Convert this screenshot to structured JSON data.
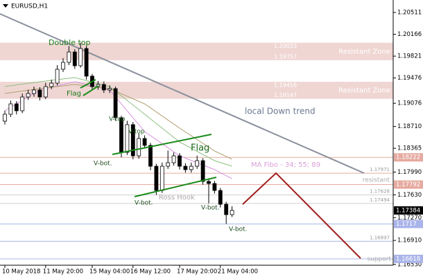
{
  "chart_data": {
    "type": "candlestick",
    "title": "EURUSD,H1",
    "categories": [
      "10 May 2018",
      null,
      null,
      null,
      null,
      null,
      null,
      "11 May 20:00",
      null,
      null,
      null,
      null,
      null,
      null,
      null,
      "15 May 04:00",
      null,
      null,
      null,
      null,
      null,
      null,
      "16 May 12:00",
      null,
      null,
      null,
      null,
      null,
      null,
      null,
      "17 May 20:00",
      null,
      null,
      null,
      null,
      null,
      null,
      "21 May 04:00",
      null,
      null
    ],
    "open": [
      1.18794,
      1.18903,
      1.19067,
      1.18958,
      1.19176,
      1.19231,
      1.19286,
      1.19176,
      1.1934,
      1.19395,
      1.19614,
      1.19723,
      1.19887,
      1.19669,
      1.19942,
      1.19505,
      1.1934,
      1.19373,
      1.19286,
      1.19308,
      1.18848,
      1.18301,
      1.18739,
      1.18246,
      1.1852,
      1.18411,
      1.18082,
      1.17699,
      1.18082,
      1.18137,
      1.18246,
      1.18082,
      1.18028,
      1.18082,
      1.1817,
      1.17842,
      1.17809,
      1.17699,
      1.17481,
      1.17317
    ],
    "high": [
      1.1896,
      1.1912,
      1.1911,
      1.1923,
      1.1929,
      1.1934,
      1.1933,
      1.194,
      1.1945,
      1.1968,
      1.1979,
      1.1998,
      1.1993,
      1.20033,
      1.1998,
      1.1954,
      1.1943,
      1.1942,
      1.1936,
      1.1934,
      1.1888,
      1.188,
      1.1878,
      1.186,
      1.1857,
      1.1845,
      1.1812,
      1.1814,
      1.1833,
      1.183,
      1.1829,
      1.1813,
      1.1814,
      1.1825,
      1.1821,
      1.1789,
      1.1785,
      1.1774,
      1.1752,
      1.1745
    ],
    "low": [
      1.1874,
      1.1886,
      1.189,
      1.1892,
      1.1913,
      1.1918,
      1.1912,
      1.1914,
      1.193,
      1.1936,
      1.1957,
      1.1968,
      1.1962,
      1.1964,
      1.1945,
      1.1928,
      1.1929,
      1.1924,
      1.1924,
      1.188,
      1.18222,
      1.1826,
      1.1819,
      1.182,
      1.1836,
      1.1802,
      1.17628,
      1.1766,
      1.1804,
      1.1809,
      1.1803,
      1.1798,
      1.1798,
      1.1804,
      1.1779,
      1.17494,
      1.1765,
      1.1743,
      1.1717,
      1.1728
    ],
    "close": [
      1.18903,
      1.19067,
      1.18958,
      1.19176,
      1.19231,
      1.19286,
      1.19176,
      1.1934,
      1.19395,
      1.19614,
      1.19723,
      1.19887,
      1.19669,
      1.19942,
      1.19505,
      1.1934,
      1.19373,
      1.19286,
      1.19308,
      1.18848,
      1.18301,
      1.18739,
      1.18246,
      1.1852,
      1.18411,
      1.18082,
      1.17699,
      1.18082,
      1.18137,
      1.18246,
      1.18082,
      1.18028,
      1.18082,
      1.1817,
      1.17842,
      1.17809,
      1.17699,
      1.17481,
      1.17317,
      1.17384
    ],
    "up_color": "#ffffff",
    "down_color": "#000000",
    "indicators": [
      {
        "color": "#d890e0",
        "x": [
          0,
          6,
          12,
          18,
          24,
          30,
          36,
          39
        ],
        "values": [
          1.18958,
          1.19286,
          1.19417,
          1.19286,
          1.18629,
          1.18246,
          1.18028,
          1.17885
        ]
      },
      {
        "color": "#8cbf80",
        "x": [
          0,
          6,
          12,
          18,
          24,
          30,
          36,
          39
        ],
        "values": [
          1.1934,
          1.19417,
          1.19483,
          1.1934,
          1.18903,
          1.18465,
          1.1817,
          1.18082
        ]
      },
      {
        "color": "#b0a070",
        "x": [
          0,
          6,
          12,
          18,
          24,
          30,
          36,
          39
        ],
        "values": [
          1.19231,
          1.19308,
          1.19373,
          1.19308,
          1.19067,
          1.18684,
          1.18323,
          1.18192
        ]
      }
    ],
    "ylim": [
      1.16518,
      1.20708
    ],
    "yticks": [
      1.20511,
      1.20166,
      1.19821,
      1.19476,
      1.19076,
      {
        "value": 1.1871,
        "label": "1.18710"
      },
      1.18365,
      {
        "value": 1.1799,
        "label": "1.17990"
      },
      {
        "value": 1.1763,
        "label": "1.17630"
      },
      {
        "value": 1.1727,
        "label": "1.17270"
      },
      {
        "value": 1.1691,
        "label": "1.16910"
      },
      {
        "value": 1.1653,
        "label": "1.16530"
      }
    ],
    "zones": [
      {
        "top": 1.20033,
        "bottom": 1.19757,
        "label": "Resistant Zone",
        "color": "#efd6d3"
      },
      {
        "top": 1.19416,
        "bottom": 1.19147,
        "label": "Resistant Zone",
        "color": "#efd6d3"
      }
    ],
    "levels": [
      {
        "value": 1.18222,
        "color": "#e6aaa0",
        "boxed": true
      },
      {
        "value": 1.17971,
        "color": "#e6aaa0",
        "boxed": false,
        "label": "resistant"
      },
      {
        "value": 1.17792,
        "color": "#e6aaa0",
        "boxed": true
      },
      {
        "value": 1.17628,
        "color": "#d0d0d0",
        "boxed": false
      },
      {
        "value": 1.17494,
        "color": "#d0d0d0",
        "boxed": false
      },
      {
        "value": 1.1717,
        "color": "#aab4ea",
        "boxed": true
      },
      {
        "value": 1.16897,
        "color": "#aab4ea",
        "boxed": false
      },
      {
        "value": 1.16618,
        "color": "#aab4ea",
        "boxed": true,
        "label": "support"
      }
    ],
    "current_price": 1.17384,
    "annotations": [
      "Double top",
      "Flag",
      "V-top",
      "V-top",
      "V-bot.",
      "V-bot.",
      "V-bot.",
      "V-bot.",
      "Flag",
      "Ross Hook",
      "local Down trend",
      "MA Fibo - 34; 55; 89"
    ]
  }
}
